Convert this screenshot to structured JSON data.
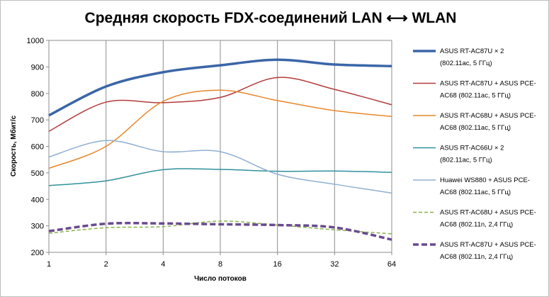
{
  "chart_data": {
    "type": "line",
    "title": "Средняя скорость FDX-соединений LAN ⟷ WLAN",
    "xlabel": "Число потоков",
    "ylabel": "Скорость, Мбит/с",
    "x_scale": "log2",
    "categories": [
      "1",
      "2",
      "4",
      "8",
      "16",
      "32",
      "64"
    ],
    "x": [
      1,
      2,
      4,
      8,
      16,
      32,
      64
    ],
    "ylim": [
      200,
      1000
    ],
    "yticks": [
      200,
      300,
      400,
      500,
      600,
      700,
      800,
      900,
      1000
    ],
    "grid": "vertical",
    "legend_position": "right",
    "series": [
      {
        "name_lines": [
          "ASUS RT-AC87U × 2",
          "(802.11ac, 5 ГГц)"
        ],
        "color": "#3b66a8",
        "width": 3.5,
        "dash": "",
        "values": [
          717,
          826,
          880,
          906,
          927,
          909,
          903
        ]
      },
      {
        "name_lines": [
          "ASUS RT-AC87U + ASUS PCE-",
          "AC68 (802.11ac, 5 ГГц)"
        ],
        "color": "#b33b3b",
        "width": 1.5,
        "dash": "",
        "values": [
          657,
          767,
          765,
          785,
          860,
          815,
          757
        ]
      },
      {
        "name_lines": [
          "ASUS RT-AC68U + ASUS PCE-",
          "AC68 (802.11ac, 5 ГГц)"
        ],
        "color": "#e8872b",
        "width": 1.5,
        "dash": "",
        "values": [
          517,
          600,
          770,
          812,
          773,
          735,
          713
        ]
      },
      {
        "name_lines": [
          "ASUS RT-AC66U × 2",
          "(802.11ac, 5 ГГц)"
        ],
        "color": "#31919b",
        "width": 1.5,
        "dash": "",
        "values": [
          452,
          470,
          512,
          513,
          506,
          507,
          502
        ]
      },
      {
        "name_lines": [
          "Huawei WS880 + ASUS PCE-",
          "AC68 (802.11ac, 5 ГГц)"
        ],
        "color": "#8fafd2",
        "width": 1.5,
        "dash": "",
        "values": [
          560,
          622,
          580,
          580,
          495,
          457,
          424
        ]
      },
      {
        "name_lines": [
          "ASUS RT-AC68U + ASUS PCE-",
          "AC68 (802.11n, 2,4 ГГц)"
        ],
        "color": "#8ab34a",
        "width": 1.5,
        "dash": "5,3",
        "values": [
          272,
          293,
          297,
          318,
          303,
          285,
          270
        ]
      },
      {
        "name_lines": [
          "ASUS RT-AC87U + ASUS PCE-",
          "AC68 (802.11n, 2,4 ГГц)"
        ],
        "color": "#6a4a8f",
        "width": 3.5,
        "dash": "8,4",
        "values": [
          280,
          308,
          309,
          306,
          303,
          294,
          248
        ]
      }
    ]
  }
}
